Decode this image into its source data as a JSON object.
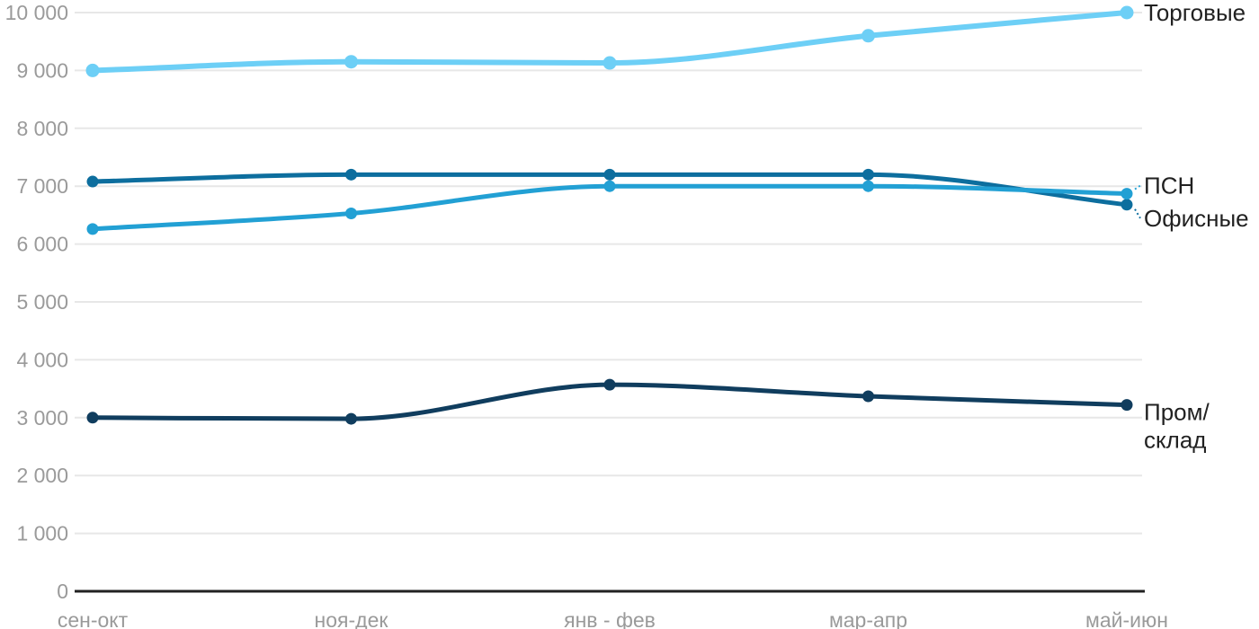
{
  "chart_data": {
    "type": "line",
    "title": "",
    "xlabel": "",
    "ylabel": "",
    "x_categories": [
      "сен-окт",
      "ноя-дек",
      "янв - фев",
      "мар-апр",
      "май-июн"
    ],
    "y_ticks": [
      "0",
      "1 000",
      "2 000",
      "3 000",
      "4 000",
      "5 000",
      "6 000",
      "7 000",
      "8 000",
      "9 000",
      "10 000"
    ],
    "ylim": [
      0,
      10000
    ],
    "grid": true,
    "legend_position": "right-edge-labels",
    "series": [
      {
        "key": "torgovye",
        "name": "Торговые",
        "color": "#6DCFF6",
        "values": [
          9000,
          9150,
          9130,
          9600,
          10000
        ],
        "label_lines": [
          "Торговые"
        ],
        "label_offset_y": 0,
        "leader": false,
        "line_width": 6,
        "point_radius": 7.5
      },
      {
        "key": "ofisnye",
        "name": "Офисные",
        "color": "#0D6E9E",
        "values": [
          7080,
          7200,
          7200,
          7200,
          6680
        ],
        "label_lines": [
          "Офисные"
        ],
        "label_offset_y": 15,
        "leader": true,
        "line_width": 5,
        "point_radius": 6.5
      },
      {
        "key": "psn",
        "name": "ПСН",
        "color": "#22A0D4",
        "values": [
          6260,
          6530,
          7000,
          7000,
          6870
        ],
        "label_lines": [
          "ПСН"
        ],
        "label_offset_y": -9,
        "leader": true,
        "line_width": 5,
        "point_radius": 6.5
      },
      {
        "key": "prom-sklad",
        "name": "Пром/склад",
        "color": "#103D5E",
        "values": [
          3000,
          2980,
          3570,
          3370,
          3220
        ],
        "label_lines": [
          "Пром/",
          "склад"
        ],
        "label_offset_y": 8,
        "leader": false,
        "line_width": 5,
        "point_radius": 6.5
      }
    ],
    "colors": {
      "grid": "#E7E7E7",
      "axis": "#212121",
      "tick_text": "#9A9A9A",
      "label_text": "#212121",
      "background": "#FFFFFF"
    }
  }
}
